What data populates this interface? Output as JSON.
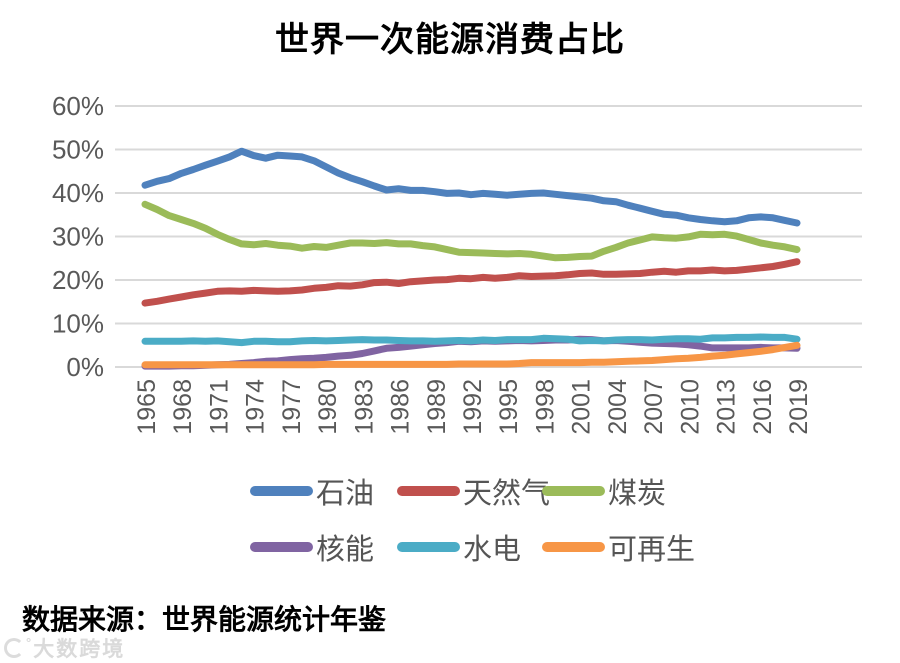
{
  "title": "世界一次能源消费占比",
  "source_note": "数据来源：世界能源统计年鉴",
  "watermark": {
    "text": "大数跨境"
  },
  "colors": {
    "gridline": "#d9d9d9",
    "axis_text": "#595959",
    "legend_text": "#555555",
    "title_text": "#000000"
  },
  "chart_data": {
    "type": "line",
    "title": "世界一次能源消费占比",
    "xlabel": "",
    "ylabel": "",
    "ylim": [
      0,
      60
    ],
    "grid": "horizontal",
    "legend_position": "bottom",
    "y_ticks": [
      0,
      10,
      20,
      30,
      40,
      50,
      60
    ],
    "y_tick_labels": [
      "0%",
      "10%",
      "20%",
      "30%",
      "40%",
      "50%",
      "60%"
    ],
    "x_tick_labels": [
      "1965",
      "1968",
      "1971",
      "1974",
      "1977",
      "1980",
      "1983",
      "1986",
      "1989",
      "1992",
      "1995",
      "1998",
      "2001",
      "2004",
      "2007",
      "2010",
      "2013",
      "2016",
      "2019"
    ],
    "years": [
      1965,
      1966,
      1967,
      1968,
      1969,
      1970,
      1971,
      1972,
      1973,
      1974,
      1975,
      1976,
      1977,
      1978,
      1979,
      1980,
      1981,
      1982,
      1983,
      1984,
      1985,
      1986,
      1987,
      1988,
      1989,
      1990,
      1991,
      1992,
      1993,
      1994,
      1995,
      1996,
      1997,
      1998,
      1999,
      2000,
      2001,
      2002,
      2003,
      2004,
      2005,
      2006,
      2007,
      2008,
      2009,
      2010,
      2011,
      2012,
      2013,
      2014,
      2015,
      2016,
      2017,
      2018,
      2019
    ],
    "unit": "percent",
    "series": [
      {
        "name": "石油",
        "color": "#4F81BD",
        "values": [
          41.8,
          42.7,
          43.3,
          44.5,
          45.4,
          46.4,
          47.3,
          48.3,
          49.6,
          48.6,
          48.0,
          48.7,
          48.5,
          48.3,
          47.4,
          46.0,
          44.6,
          43.5,
          42.6,
          41.6,
          40.7,
          41.0,
          40.6,
          40.6,
          40.3,
          39.9,
          40.0,
          39.6,
          39.9,
          39.7,
          39.5,
          39.7,
          39.9,
          40.0,
          39.7,
          39.4,
          39.1,
          38.8,
          38.2,
          38.0,
          37.2,
          36.5,
          35.8,
          35.1,
          34.9,
          34.3,
          33.9,
          33.6,
          33.4,
          33.6,
          34.3,
          34.5,
          34.3,
          33.7,
          33.1
        ]
      },
      {
        "name": "天然气",
        "color": "#C0504D",
        "values": [
          14.7,
          15.1,
          15.6,
          16.1,
          16.6,
          17.0,
          17.4,
          17.5,
          17.4,
          17.6,
          17.5,
          17.4,
          17.5,
          17.7,
          18.1,
          18.3,
          18.7,
          18.6,
          18.9,
          19.4,
          19.5,
          19.2,
          19.6,
          19.8,
          20.0,
          20.1,
          20.4,
          20.3,
          20.6,
          20.4,
          20.6,
          21.0,
          20.8,
          20.9,
          21.0,
          21.2,
          21.5,
          21.6,
          21.3,
          21.3,
          21.4,
          21.5,
          21.8,
          22.0,
          21.8,
          22.1,
          22.1,
          22.3,
          22.1,
          22.2,
          22.5,
          22.8,
          23.1,
          23.6,
          24.2
        ]
      },
      {
        "name": "煤炭",
        "color": "#9BBB59",
        "values": [
          37.4,
          36.2,
          34.8,
          33.9,
          33.0,
          31.9,
          30.5,
          29.3,
          28.3,
          28.1,
          28.4,
          28.0,
          27.8,
          27.3,
          27.7,
          27.5,
          28.0,
          28.5,
          28.5,
          28.4,
          28.6,
          28.3,
          28.3,
          27.9,
          27.6,
          27.0,
          26.4,
          26.3,
          26.2,
          26.1,
          26.0,
          26.1,
          25.9,
          25.5,
          25.1,
          25.2,
          25.4,
          25.5,
          26.6,
          27.5,
          28.5,
          29.2,
          29.9,
          29.7,
          29.6,
          29.9,
          30.5,
          30.4,
          30.5,
          30.1,
          29.3,
          28.5,
          28.0,
          27.6,
          27.0
        ]
      },
      {
        "name": "核能",
        "color": "#8064A2",
        "values": [
          0.2,
          0.2,
          0.2,
          0.3,
          0.3,
          0.4,
          0.5,
          0.6,
          0.8,
          1.0,
          1.3,
          1.4,
          1.7,
          1.9,
          2.0,
          2.2,
          2.5,
          2.7,
          3.1,
          3.7,
          4.3,
          4.5,
          4.8,
          5.1,
          5.4,
          5.6,
          5.9,
          5.8,
          6.0,
          5.9,
          6.0,
          6.1,
          6.0,
          6.1,
          6.2,
          6.2,
          6.4,
          6.3,
          6.0,
          6.1,
          5.9,
          5.7,
          5.5,
          5.4,
          5.3,
          5.1,
          4.8,
          4.4,
          4.4,
          4.4,
          4.4,
          4.5,
          4.4,
          4.4,
          4.3
        ]
      },
      {
        "name": "水电",
        "color": "#4BACC6",
        "values": [
          5.9,
          5.9,
          5.9,
          5.9,
          6.0,
          5.9,
          6.0,
          5.8,
          5.6,
          5.9,
          5.9,
          5.8,
          5.8,
          6.0,
          6.1,
          6.0,
          6.1,
          6.2,
          6.3,
          6.2,
          6.2,
          6.1,
          6.0,
          6.0,
          5.9,
          6.0,
          6.1,
          6.0,
          6.2,
          6.1,
          6.3,
          6.3,
          6.3,
          6.6,
          6.5,
          6.4,
          6.0,
          6.1,
          6.0,
          6.2,
          6.3,
          6.3,
          6.2,
          6.4,
          6.5,
          6.5,
          6.4,
          6.7,
          6.7,
          6.8,
          6.8,
          6.9,
          6.8,
          6.8,
          6.4
        ]
      },
      {
        "name": "可再生",
        "color": "#F79646",
        "values": [
          0.5,
          0.5,
          0.5,
          0.5,
          0.5,
          0.5,
          0.5,
          0.5,
          0.5,
          0.5,
          0.5,
          0.5,
          0.5,
          0.5,
          0.5,
          0.6,
          0.6,
          0.6,
          0.6,
          0.6,
          0.6,
          0.6,
          0.6,
          0.6,
          0.6,
          0.6,
          0.7,
          0.7,
          0.7,
          0.7,
          0.7,
          0.8,
          1.0,
          1.0,
          1.0,
          1.0,
          1.0,
          1.1,
          1.1,
          1.2,
          1.3,
          1.4,
          1.5,
          1.7,
          1.9,
          2.0,
          2.2,
          2.5,
          2.7,
          3.0,
          3.3,
          3.6,
          4.0,
          4.5,
          5.0
        ]
      }
    ]
  }
}
